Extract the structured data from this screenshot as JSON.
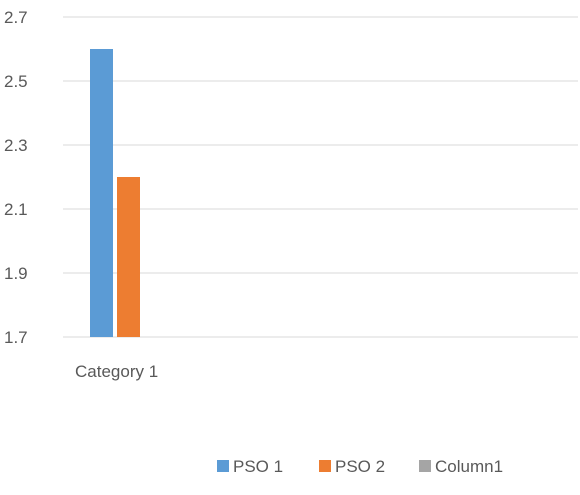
{
  "chart_data": {
    "type": "bar",
    "categories": [
      "Category 1"
    ],
    "series": [
      {
        "name": "PSO 1",
        "values": [
          2.6
        ],
        "color": "#5B9BD5"
      },
      {
        "name": "PSO 2",
        "values": [
          2.2
        ],
        "color": "#ED7D31"
      },
      {
        "name": "Column1",
        "values": [
          null
        ],
        "color": "#A5A5A5"
      }
    ],
    "ylim": [
      1.7,
      2.7
    ],
    "yticks": [
      "1.7",
      "1.9",
      "2.1",
      "2.3",
      "2.5",
      "2.7"
    ],
    "grid": true,
    "legend": "bottom"
  }
}
